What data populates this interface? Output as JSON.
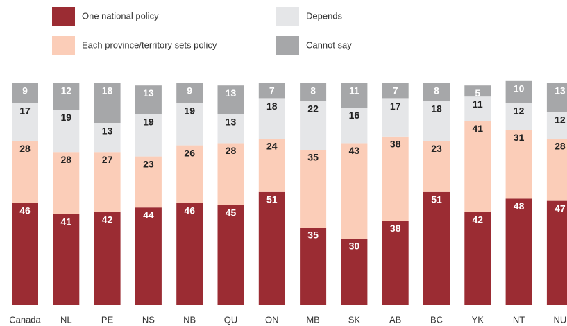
{
  "chart_data": {
    "type": "stacked_bar",
    "categories": [
      "Canada",
      "NL",
      "PE",
      "NS",
      "NB",
      "QU",
      "ON",
      "MB",
      "SK",
      "AB",
      "BC",
      "YK",
      "NT",
      "NU"
    ],
    "series": [
      {
        "name": "One national policy",
        "color": "#9b2c33",
        "values": [
          46,
          41,
          42,
          44,
          46,
          45,
          51,
          35,
          30,
          38,
          51,
          42,
          48,
          47
        ]
      },
      {
        "name": "Each province/territory sets policy",
        "color": "#fbcdb8",
        "values": [
          28,
          28,
          27,
          23,
          26,
          28,
          24,
          35,
          43,
          38,
          23,
          41,
          31,
          28
        ]
      },
      {
        "name": "Depends",
        "color": "#e5e6e8",
        "values": [
          17,
          19,
          13,
          19,
          19,
          13,
          18,
          22,
          16,
          17,
          18,
          11,
          12,
          12
        ]
      },
      {
        "name": "Cannot say",
        "color": "#a6a7a9",
        "values": [
          9,
          12,
          18,
          13,
          9,
          13,
          7,
          8,
          11,
          7,
          8,
          5,
          10,
          13
        ]
      }
    ],
    "ylim": [
      0,
      100
    ]
  }
}
